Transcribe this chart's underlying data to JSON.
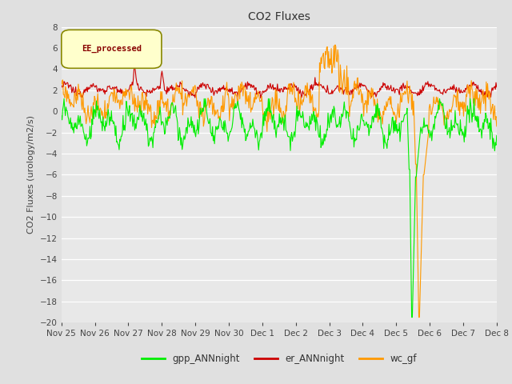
{
  "title": "CO2 Fluxes",
  "ylabel": "CO2 Fluxes (urology/m2/s)",
  "ylim": [
    -20,
    8
  ],
  "yticks": [
    -20,
    -18,
    -16,
    -14,
    -12,
    -10,
    -8,
    -6,
    -4,
    -2,
    0,
    2,
    4,
    6,
    8
  ],
  "date_labels": [
    "Nov 25",
    "Nov 26",
    "Nov 27",
    "Nov 28",
    "Nov 29",
    "Nov 30",
    "Dec 1",
    "Dec 2",
    "Dec 3",
    "Dec 4",
    "Dec 5",
    "Dec 6",
    "Dec 7",
    "Dec 8"
  ],
  "fig_bg_color": "#e0e0e0",
  "plot_bg_color": "#e8e8e8",
  "grid_color": "#ffffff",
  "legend_label": "EE_processed",
  "legend_bg": "#ffffcc",
  "legend_border": "#888800",
  "legend_text_color": "#880000",
  "colors": {
    "gpp": "#00ee00",
    "er": "#cc0000",
    "wc": "#ff9900"
  },
  "series_labels": {
    "gpp": "gpp_ANNnight",
    "er": "er_ANNnight",
    "wc": "wc_gf"
  },
  "title_fontsize": 10,
  "label_fontsize": 8,
  "tick_fontsize": 7.5
}
